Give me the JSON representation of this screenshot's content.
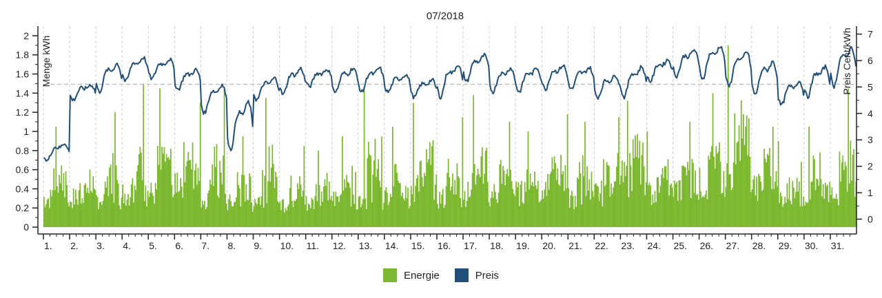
{
  "chart_data": {
    "type": "bar+line",
    "title": "07/2018",
    "x_categories": [
      "1.",
      "2.",
      "3.",
      "4.",
      "5.",
      "6.",
      "7.",
      "8.",
      "9.",
      "10.",
      "11.",
      "12.",
      "13.",
      "14.",
      "15.",
      "16.",
      "17.",
      "18.",
      "19.",
      "20.",
      "21.",
      "22.",
      "23.",
      "24.",
      "25.",
      "26.",
      "27.",
      "28.",
      "29.",
      "30.",
      "31."
    ],
    "left_axis": {
      "label": "Menge kWh",
      "range": [
        0,
        2.1
      ],
      "ticks": [
        0,
        0.2,
        0.4,
        0.6,
        0.8,
        1,
        1.2,
        1.4,
        1.6,
        1.8,
        2
      ]
    },
    "right_axis": {
      "label": "Preis Cent/kWh",
      "range": [
        -0.3,
        7.3
      ],
      "ticks": [
        0,
        1,
        2,
        3,
        4,
        5,
        6,
        7
      ]
    },
    "reference_line": {
      "axis": "right",
      "value": 5.1
    },
    "grid": "vertical dashed per day",
    "legend_position": "bottom",
    "series": [
      {
        "name": "Energie",
        "type": "bar",
        "axis": "left",
        "color": "#7cb82f",
        "resolution": "hourly",
        "daily_base_kwh": [
          0.3,
          0.3,
          0.3,
          0.35,
          0.35,
          0.5,
          0.3,
          0.25,
          0.3,
          0.25,
          0.25,
          0.3,
          0.3,
          0.3,
          0.4,
          0.3,
          0.35,
          0.35,
          0.35,
          0.4,
          0.3,
          0.35,
          0.5,
          0.35,
          0.4,
          0.45,
          0.55,
          0.45,
          0.3,
          0.35,
          0.35
        ],
        "daily_peak_kwh": [
          1.05,
          0.6,
          1.2,
          1.5,
          1.45,
          1.3,
          1.45,
          0.95,
          1.35,
          0.85,
          0.8,
          0.95,
          1.45,
          1.05,
          1.3,
          1.15,
          1.38,
          1.1,
          1.0,
          1.18,
          1.1,
          1.15,
          1.32,
          1.0,
          1.1,
          1.4,
          1.9,
          1.05,
          0.9,
          1.05,
          1.45
        ]
      },
      {
        "name": "Preis",
        "type": "line",
        "axis": "right",
        "color": "#1f4e79",
        "resolution": "hourly",
        "daily_min_cent": [
          2.2,
          4.5,
          4.8,
          5.2,
          5.3,
          4.9,
          4.0,
          2.6,
          4.5,
          4.7,
          5.0,
          4.8,
          4.8,
          4.8,
          4.6,
          4.6,
          5.2,
          4.8,
          4.8,
          4.9,
          4.9,
          4.6,
          4.6,
          5.2,
          5.4,
          5.3,
          5.0,
          4.7,
          4.3,
          4.6,
          5.0
        ],
        "daily_max_cent": [
          3.0,
          5.2,
          6.1,
          6.3,
          6.2,
          5.8,
          5.3,
          4.8,
          5.5,
          5.9,
          5.8,
          5.9,
          5.9,
          5.6,
          5.4,
          6.1,
          6.4,
          5.9,
          5.9,
          6.0,
          5.9,
          5.6,
          6.0,
          6.2,
          6.6,
          6.8,
          6.6,
          6.2,
          5.4,
          6.0,
          6.8
        ]
      }
    ]
  }
}
